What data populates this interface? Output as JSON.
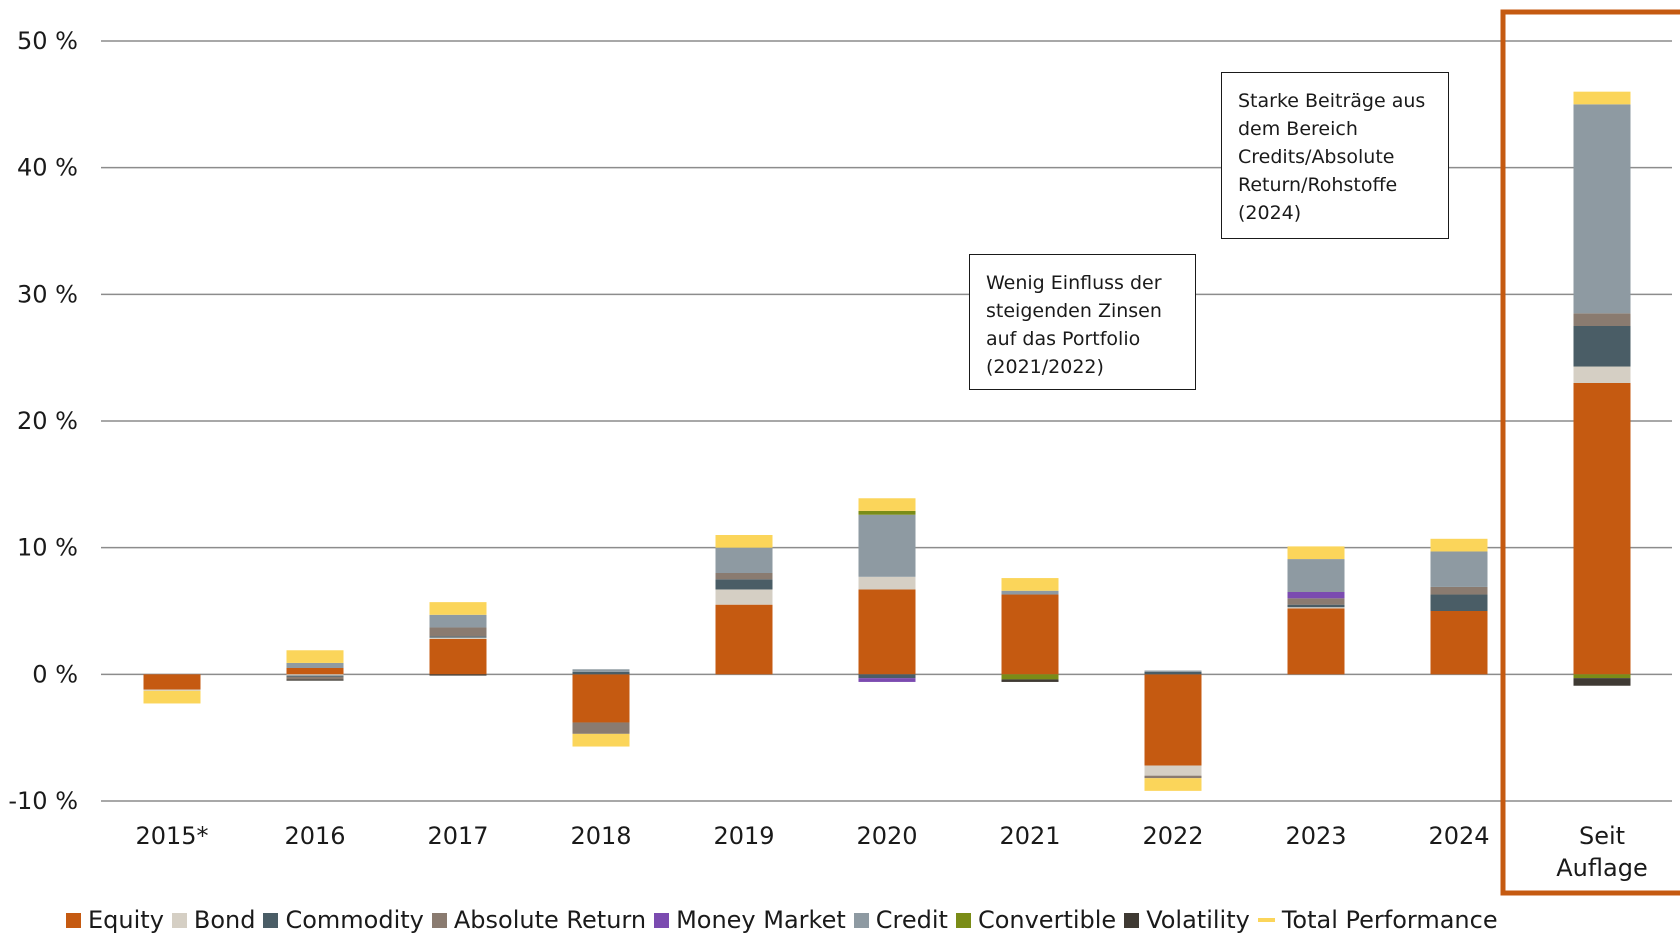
{
  "colors": {
    "Equity": "#c55a11",
    "Bond": "#d5cfc4",
    "Commodity": "#4a5d66",
    "Absolute Return": "#8a7b70",
    "Money Market": "#7b4bb0",
    "Credit": "#8e9aa2",
    "Convertible": "#7a8c17",
    "Volatility": "#3f3a33",
    "Total Performance": "#fbd55a",
    "highlight": "#c55a11",
    "grid": "#8c8c8c"
  },
  "chart_data": {
    "type": "bar",
    "stacked": true,
    "ylim": [
      -10,
      50
    ],
    "yticks": [
      -10,
      0,
      10,
      20,
      30,
      40,
      50
    ],
    "ytick_labels": [
      "-10 %",
      "0 %",
      "10 %",
      "20 %",
      "30 %",
      "40 %",
      "50 %"
    ],
    "grid": true,
    "legend_position": "bottom",
    "categories": [
      "2015*",
      "2016",
      "2017",
      "2018",
      "2019",
      "2020",
      "2021",
      "2022",
      "2023",
      "2024",
      "Seit Auflage"
    ],
    "highlighted_category": "Seit Auflage",
    "series": [
      {
        "name": "Equity",
        "values": [
          -1.2,
          0.5,
          2.8,
          -3.8,
          5.5,
          6.7,
          6.3,
          -7.2,
          5.2,
          5.0,
          23.0
        ]
      },
      {
        "name": "Bond",
        "values": [
          -0.1,
          -0.1,
          0.1,
          0.0,
          1.2,
          1.0,
          0.0,
          -0.8,
          0.1,
          0.0,
          1.3
        ]
      },
      {
        "name": "Commodity",
        "values": [
          0.0,
          -0.1,
          0.1,
          0.2,
          0.8,
          -0.3,
          0.0,
          0.2,
          0.2,
          1.3,
          3.2
        ]
      },
      {
        "name": "Absolute Return",
        "values": [
          0.0,
          -0.2,
          0.7,
          -0.9,
          0.5,
          0.0,
          0.0,
          -0.2,
          0.5,
          0.6,
          1.0
        ]
      },
      {
        "name": "Money Market",
        "values": [
          0.0,
          0.0,
          0.0,
          0.0,
          0.0,
          -0.3,
          0.0,
          0.0,
          0.5,
          0.0,
          0.0
        ]
      },
      {
        "name": "Credit",
        "values": [
          0.0,
          0.4,
          1.0,
          0.2,
          2.0,
          4.9,
          0.3,
          0.1,
          2.6,
          2.8,
          16.5
        ]
      },
      {
        "name": "Convertible",
        "values": [
          0.0,
          0.0,
          0.0,
          0.0,
          0.0,
          0.3,
          -0.4,
          0.0,
          0.0,
          0.0,
          -0.3
        ]
      },
      {
        "name": "Volatility",
        "values": [
          0.0,
          -0.1,
          -0.1,
          0.0,
          0.0,
          0.0,
          -0.2,
          0.0,
          0.0,
          0.0,
          -0.6
        ]
      }
    ],
    "total_performance": [
      -1.8,
      1.4,
      5.7,
      -5.4,
      10.9,
      13.7,
      7.3,
      -9.1,
      9.9,
      10.6,
      46.7
    ]
  },
  "annotations": [
    {
      "lines": [
        "Wenig Einfluss der",
        "steigenden Zinsen",
        "auf das Portfolio",
        "(2021/2022)"
      ]
    },
    {
      "lines": [
        "Starke Beiträge aus",
        "dem Bereich",
        "Credits/Absolute",
        "Return/Rohstoffe",
        "(2024)"
      ]
    }
  ],
  "legend": [
    "Equity",
    "Bond",
    "Commodity",
    "Absolute Return",
    "Money Market",
    "Credit",
    "Convertible",
    "Volatility",
    "Total Performance"
  ]
}
